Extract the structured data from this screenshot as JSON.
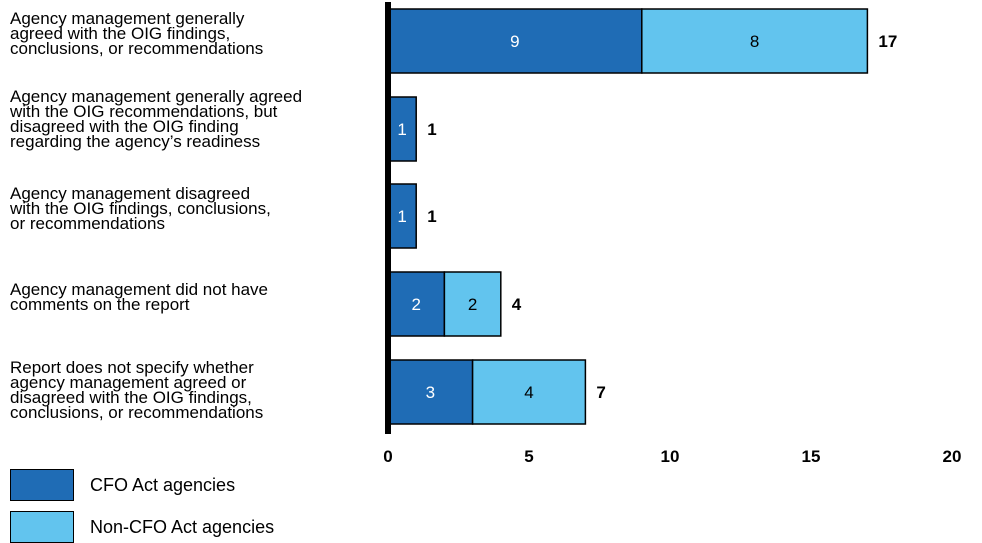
{
  "chart_data": {
    "type": "bar",
    "orientation": "horizontal",
    "stacked": true,
    "categories": [
      "Agency management generally\nagreed with the OIG findings,\nconclusions, or recommendations",
      "Agency management generally agreed\nwith the OIG recommendations, but\ndisagreed with the OIG finding\nregarding the agency’s readiness",
      "Agency management disagreed\nwith the OIG findings, conclusions,\nor recommendations",
      "Agency management did not have\ncomments on the report",
      "Report does not specify whether\nagency management agreed or\ndisagreed with the OIG findings,\nconclusions, or recommendations"
    ],
    "series": [
      {
        "name": "CFO Act agencies",
        "values": [
          9,
          1,
          1,
          2,
          3
        ],
        "color": "#1f6cb5"
      },
      {
        "name": "Non-CFO Act agencies",
        "values": [
          8,
          0,
          0,
          2,
          4
        ],
        "color": "#62c4ee"
      }
    ],
    "totals": [
      17,
      1,
      1,
      4,
      7
    ],
    "xlim": [
      0,
      20
    ],
    "xticks": [
      0,
      5,
      10,
      15,
      20
    ],
    "grid": false,
    "legend_placement": "bottom-left"
  }
}
